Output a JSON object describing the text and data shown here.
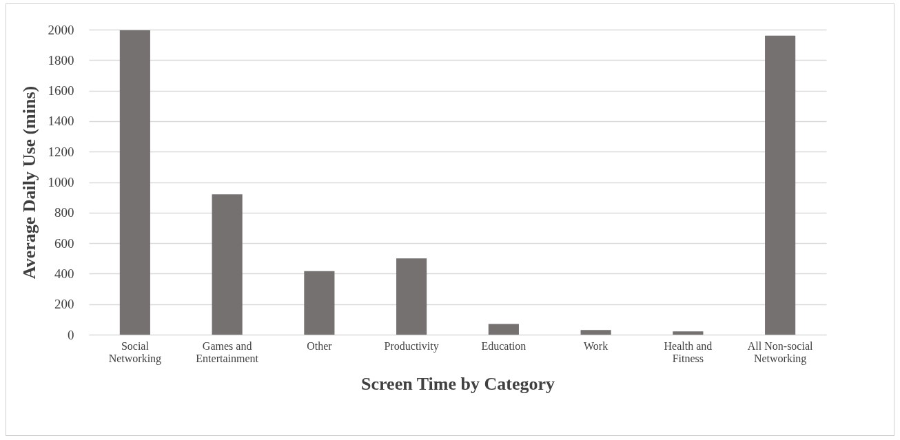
{
  "chart_data": {
    "type": "bar",
    "xlabel": "Screen Time by Category",
    "ylabel": "Average Daily Use (mins)",
    "categories": [
      "Social Networking",
      "Games and Entertainment",
      "Other",
      "Productivity",
      "Education",
      "Work",
      "Health and Fitness",
      "All Non-social Networking"
    ],
    "values": [
      1995,
      920,
      416,
      500,
      70,
      30,
      22,
      1960
    ],
    "color": "#757170",
    "ylim": [
      0,
      2000
    ],
    "yticks": [
      0,
      200,
      400,
      600,
      800,
      1000,
      1200,
      1400,
      1600,
      1800,
      2000
    ],
    "grid": "y"
  }
}
